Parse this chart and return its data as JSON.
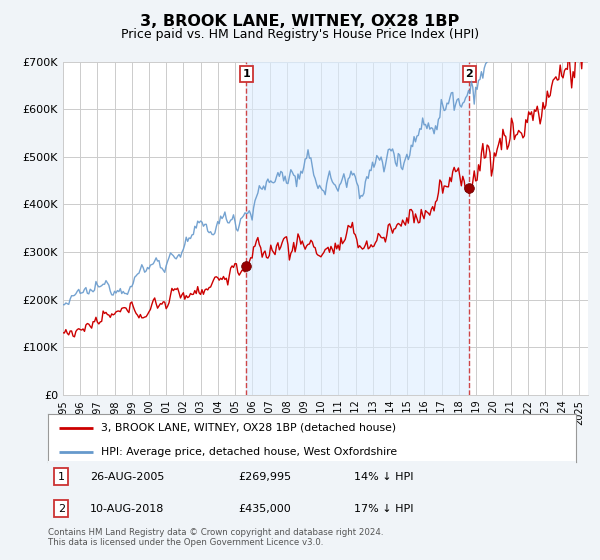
{
  "title": "3, BROOK LANE, WITNEY, OX28 1BP",
  "subtitle": "Price paid vs. HM Land Registry's House Price Index (HPI)",
  "title_fontsize": 11.5,
  "subtitle_fontsize": 9,
  "ylabel_ticks": [
    "£0",
    "£100K",
    "£200K",
    "£300K",
    "£400K",
    "£500K",
    "£600K",
    "£700K"
  ],
  "ylim": [
    0,
    700000
  ],
  "xlim_start": 1995.0,
  "xlim_end": 2025.5,
  "background_color": "#f0f4f8",
  "plot_bg_color": "#ffffff",
  "grid_color": "#cccccc",
  "hpi_color": "#6699cc",
  "hpi_fill_color": "#ddeeff",
  "price_color": "#cc0000",
  "marker_color": "#990000",
  "vline_color": "#cc3333",
  "marker1_x": 2005.65,
  "marker1_y": 269995,
  "marker2_x": 2018.61,
  "marker2_y": 435000,
  "legend_label1": "3, BROOK LANE, WITNEY, OX28 1BP (detached house)",
  "legend_label2": "HPI: Average price, detached house, West Oxfordshire",
  "table_row1": [
    "1",
    "26-AUG-2005",
    "£269,995",
    "14% ↓ HPI"
  ],
  "table_row2": [
    "2",
    "10-AUG-2018",
    "£435,000",
    "17% ↓ HPI"
  ],
  "footnote": "Contains HM Land Registry data © Crown copyright and database right 2024.\nThis data is licensed under the Open Government Licence v3.0.",
  "x_tick_years": [
    1995,
    1996,
    1997,
    1998,
    1999,
    2000,
    2001,
    2002,
    2003,
    2004,
    2005,
    2006,
    2007,
    2008,
    2009,
    2010,
    2011,
    2012,
    2013,
    2014,
    2015,
    2016,
    2017,
    2018,
    2019,
    2020,
    2021,
    2022,
    2023,
    2024,
    2025
  ]
}
